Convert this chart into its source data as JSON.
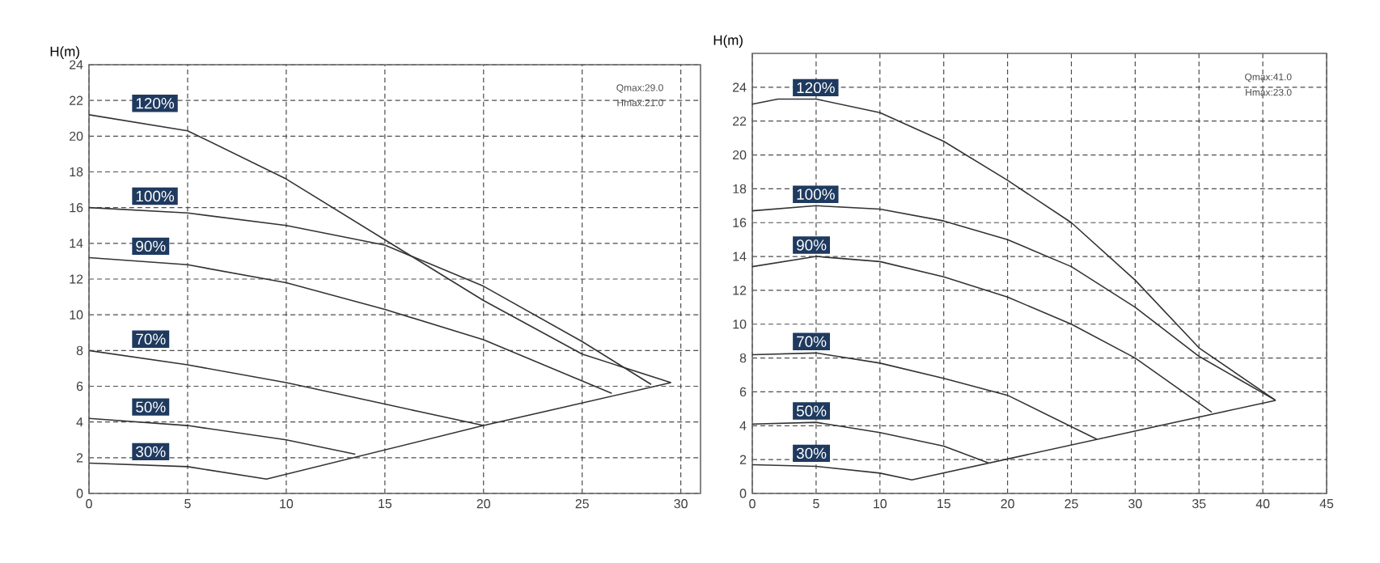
{
  "chart_data": [
    {
      "type": "line",
      "ylabel": "H(m)",
      "xlim": [
        0,
        31
      ],
      "ylim": [
        0,
        24
      ],
      "xticks": [
        0,
        5,
        10,
        15,
        20,
        25,
        30
      ],
      "yticks": [
        0,
        2,
        4,
        6,
        8,
        10,
        12,
        14,
        16,
        18,
        20,
        22,
        24
      ],
      "grid": true,
      "marker": "none",
      "line_style": "solid",
      "annotations": [
        "Qmax:29.0",
        "Hmax:21.0"
      ],
      "series": [
        {
          "name": "120%",
          "color": "#333333",
          "x": [
            0,
            5,
            10,
            15,
            20,
            25,
            29.5
          ],
          "values": [
            21.2,
            20.3,
            17.6,
            14.2,
            10.8,
            7.8,
            6.2
          ]
        },
        {
          "name": "100%",
          "color": "#333333",
          "x": [
            0,
            5,
            10,
            15,
            20,
            25,
            28.5
          ],
          "values": [
            16,
            15.7,
            15,
            13.9,
            11.6,
            8.5,
            6.1
          ]
        },
        {
          "name": "90%",
          "color": "#333333",
          "x": [
            0,
            5,
            10,
            15,
            20,
            26.5
          ],
          "values": [
            13.2,
            12.8,
            11.8,
            10.3,
            8.6,
            5.6
          ]
        },
        {
          "name": "70%",
          "color": "#333333",
          "x": [
            0,
            5,
            10,
            15,
            20
          ],
          "values": [
            8,
            7.2,
            6.2,
            5,
            3.8
          ]
        },
        {
          "name": "50%",
          "color": "#333333",
          "x": [
            0,
            5,
            10,
            13.5
          ],
          "values": [
            4.2,
            3.8,
            3,
            2.2
          ]
        },
        {
          "name": "30%",
          "color": "#333333",
          "x": [
            0,
            5,
            9,
            20,
            29.5
          ],
          "values": [
            1.7,
            1.5,
            0.8,
            3.8,
            6.2
          ]
        }
      ]
    },
    {
      "type": "line",
      "ylabel": "H(m)",
      "xlim": [
        0,
        45
      ],
      "ylim": [
        0,
        26
      ],
      "xticks": [
        0,
        5,
        10,
        15,
        20,
        25,
        30,
        35,
        40,
        45
      ],
      "yticks": [
        0,
        2,
        4,
        6,
        8,
        10,
        12,
        14,
        16,
        18,
        20,
        22,
        24
      ],
      "grid": true,
      "marker": "none",
      "line_style": "solid",
      "annotations": [
        "Qmax:41.0",
        "Hmax:23.0"
      ],
      "series": [
        {
          "name": "120%",
          "color": "#333333",
          "x": [
            0,
            2,
            5,
            10,
            15,
            20,
            25,
            30,
            35,
            41
          ],
          "values": [
            23,
            23.3,
            23.3,
            22.5,
            20.8,
            18.5,
            16,
            12.6,
            8.6,
            5.5
          ]
        },
        {
          "name": "100%",
          "color": "#333333",
          "x": [
            0,
            5,
            10,
            15,
            20,
            25,
            30,
            35,
            41
          ],
          "values": [
            16.7,
            17,
            16.8,
            16.1,
            15,
            13.4,
            11,
            8.1,
            5.5
          ]
        },
        {
          "name": "90%",
          "color": "#333333",
          "x": [
            0,
            5,
            10,
            15,
            20,
            25,
            30,
            36
          ],
          "values": [
            13.4,
            14,
            13.7,
            12.8,
            11.6,
            10,
            8,
            4.8
          ]
        },
        {
          "name": "70%",
          "color": "#333333",
          "x": [
            0,
            5,
            10,
            15,
            20,
            27
          ],
          "values": [
            8.2,
            8.3,
            7.7,
            6.8,
            5.8,
            3.2
          ]
        },
        {
          "name": "50%",
          "color": "#333333",
          "x": [
            0,
            5,
            10,
            15,
            18.5
          ],
          "values": [
            4.1,
            4.2,
            3.6,
            2.8,
            1.8
          ]
        },
        {
          "name": "30%",
          "color": "#333333",
          "x": [
            0,
            5,
            10,
            12.5,
            41
          ],
          "values": [
            1.7,
            1.6,
            1.2,
            0.8,
            5.5
          ]
        }
      ]
    }
  ]
}
